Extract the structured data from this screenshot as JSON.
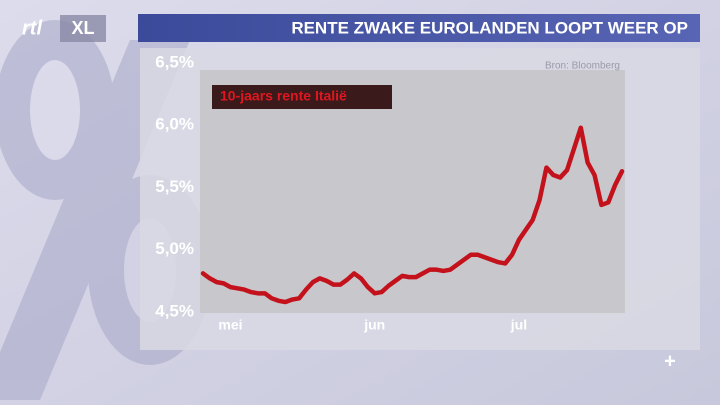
{
  "logo": {
    "left": "rtl",
    "right": "XL"
  },
  "chart_data": {
    "type": "line",
    "title": "RENTE ZWAKE EUROLANDEN LOOPT WEER OP",
    "source": "Bron: Bloomberg",
    "categories": [
      null,
      null,
      null,
      null,
      "mei",
      null,
      null,
      null,
      null,
      null,
      null,
      null,
      null,
      null,
      null,
      null,
      null,
      null,
      null,
      null,
      null,
      null,
      null,
      null,
      null,
      "jun",
      null,
      null,
      null,
      null,
      null,
      null,
      null,
      null,
      null,
      null,
      null,
      null,
      null,
      null,
      null,
      null,
      null,
      null,
      null,
      null,
      "jul",
      null,
      null,
      null,
      null,
      null,
      null,
      null,
      null,
      null,
      null,
      null,
      null,
      null,
      null,
      null
    ],
    "series": [
      {
        "name": "10-jaars rente Italië",
        "color": "#c4121c",
        "values": [
          4.81,
          4.77,
          4.74,
          4.73,
          4.7,
          4.69,
          4.68,
          4.66,
          4.65,
          4.65,
          4.61,
          4.59,
          4.58,
          4.6,
          4.61,
          4.68,
          4.74,
          4.77,
          4.75,
          4.72,
          4.72,
          4.76,
          4.81,
          4.77,
          4.7,
          4.65,
          4.66,
          4.71,
          4.75,
          4.79,
          4.78,
          4.78,
          4.81,
          4.84,
          4.84,
          4.83,
          4.84,
          4.88,
          4.92,
          4.96,
          4.96,
          4.94,
          4.92,
          4.9,
          4.89,
          4.96,
          5.08,
          5.16,
          5.24,
          5.4,
          5.66,
          5.6,
          5.58,
          5.64,
          5.81,
          5.98,
          5.7,
          5.6,
          5.36,
          5.38,
          5.52,
          5.63
        ]
      }
    ],
    "ylim": [
      4.5,
      6.5
    ],
    "yticks": [
      {
        "value": 4.5,
        "label": "4,5%"
      },
      {
        "value": 5.0,
        "label": "5,0%"
      },
      {
        "value": 5.5,
        "label": "5,5%"
      },
      {
        "value": 6.0,
        "label": "6,0%"
      },
      {
        "value": 6.5,
        "label": "6,5%"
      }
    ]
  }
}
